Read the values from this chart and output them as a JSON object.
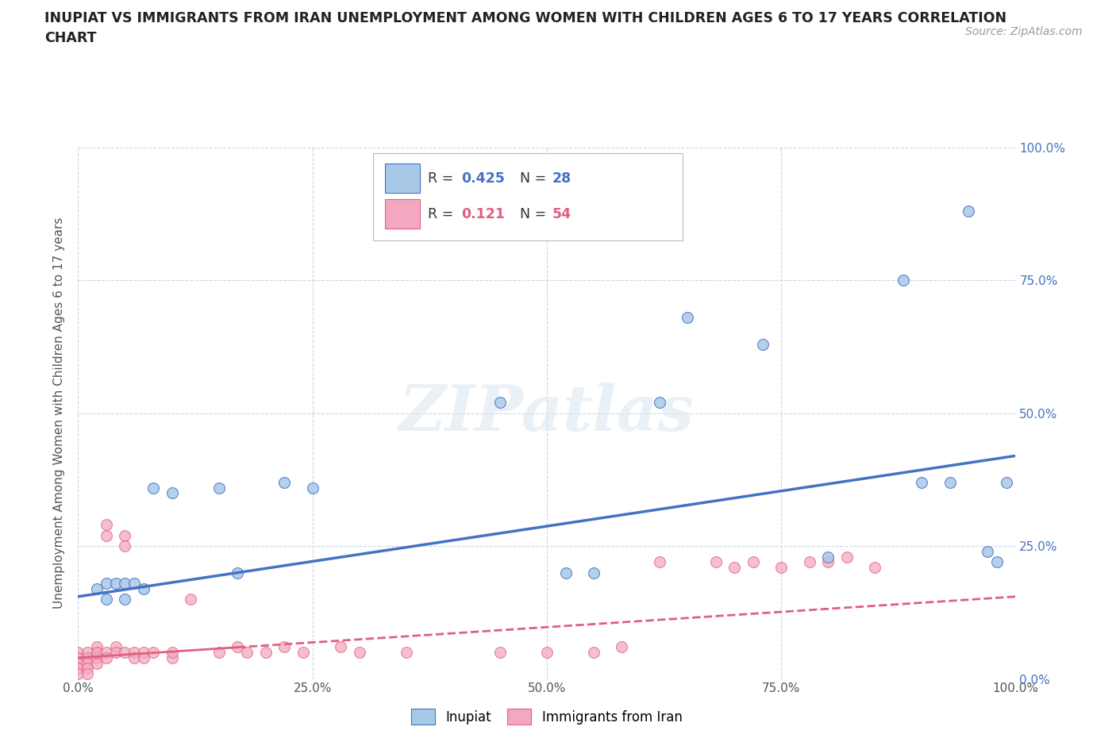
{
  "title_line1": "INUPIAT VS IMMIGRANTS FROM IRAN UNEMPLOYMENT AMONG WOMEN WITH CHILDREN AGES 6 TO 17 YEARS CORRELATION",
  "title_line2": "CHART",
  "source": "Source: ZipAtlas.com",
  "ylabel": "Unemployment Among Women with Children Ages 6 to 17 years",
  "xlim": [
    0,
    1.0
  ],
  "ylim": [
    0,
    1.0
  ],
  "xtick_labels": [
    "0.0%",
    "25.0%",
    "50.0%",
    "75.0%",
    "100.0%"
  ],
  "xtick_vals": [
    0,
    0.25,
    0.5,
    0.75,
    1.0
  ],
  "ytick_vals": [
    0,
    0.25,
    0.5,
    0.75,
    1.0
  ],
  "ytick_labels": [
    "0.0%",
    "25.0%",
    "50.0%",
    "75.0%",
    "100.0%"
  ],
  "inupiat_x": [
    0.02,
    0.03,
    0.03,
    0.04,
    0.05,
    0.05,
    0.06,
    0.07,
    0.08,
    0.1,
    0.15,
    0.17,
    0.22,
    0.25,
    0.45,
    0.52,
    0.55,
    0.62,
    0.65,
    0.73,
    0.8,
    0.88,
    0.9,
    0.93,
    0.95,
    0.97,
    0.98,
    0.99
  ],
  "inupiat_y": [
    0.17,
    0.18,
    0.15,
    0.18,
    0.18,
    0.15,
    0.18,
    0.17,
    0.36,
    0.35,
    0.36,
    0.2,
    0.37,
    0.36,
    0.52,
    0.2,
    0.2,
    0.52,
    0.68,
    0.63,
    0.23,
    0.75,
    0.37,
    0.37,
    0.88,
    0.24,
    0.22,
    0.37
  ],
  "iran_x": [
    0.0,
    0.0,
    0.0,
    0.0,
    0.0,
    0.01,
    0.01,
    0.01,
    0.01,
    0.01,
    0.02,
    0.02,
    0.02,
    0.02,
    0.02,
    0.03,
    0.03,
    0.03,
    0.03,
    0.04,
    0.04,
    0.05,
    0.05,
    0.05,
    0.06,
    0.06,
    0.07,
    0.07,
    0.08,
    0.1,
    0.1,
    0.12,
    0.15,
    0.17,
    0.18,
    0.2,
    0.22,
    0.24,
    0.28,
    0.3,
    0.35,
    0.45,
    0.5,
    0.55,
    0.58,
    0.62,
    0.68,
    0.7,
    0.72,
    0.75,
    0.78,
    0.8,
    0.82,
    0.85
  ],
  "iran_y": [
    0.05,
    0.04,
    0.03,
    0.02,
    0.01,
    0.05,
    0.04,
    0.03,
    0.02,
    0.01,
    0.05,
    0.04,
    0.06,
    0.05,
    0.03,
    0.27,
    0.29,
    0.05,
    0.04,
    0.06,
    0.05,
    0.27,
    0.25,
    0.05,
    0.05,
    0.04,
    0.05,
    0.04,
    0.05,
    0.04,
    0.05,
    0.15,
    0.05,
    0.06,
    0.05,
    0.05,
    0.06,
    0.05,
    0.06,
    0.05,
    0.05,
    0.05,
    0.05,
    0.05,
    0.06,
    0.22,
    0.22,
    0.21,
    0.22,
    0.21,
    0.22,
    0.22,
    0.23,
    0.21
  ],
  "inupiat_color": "#a8c8e8",
  "iran_color": "#f4a8c0",
  "inupiat_line_color": "#4472c4",
  "iran_line_color": "#e06080",
  "background_color": "#ffffff",
  "grid_color": "#c8d8e8",
  "watermark": "ZIPatlas",
  "blue_line_x0": 0.0,
  "blue_line_y0": 0.155,
  "blue_line_x1": 1.0,
  "blue_line_y1": 0.42,
  "pink_line_x0": 0.0,
  "pink_line_y0": 0.04,
  "pink_line_x1": 1.0,
  "pink_line_y1": 0.155
}
